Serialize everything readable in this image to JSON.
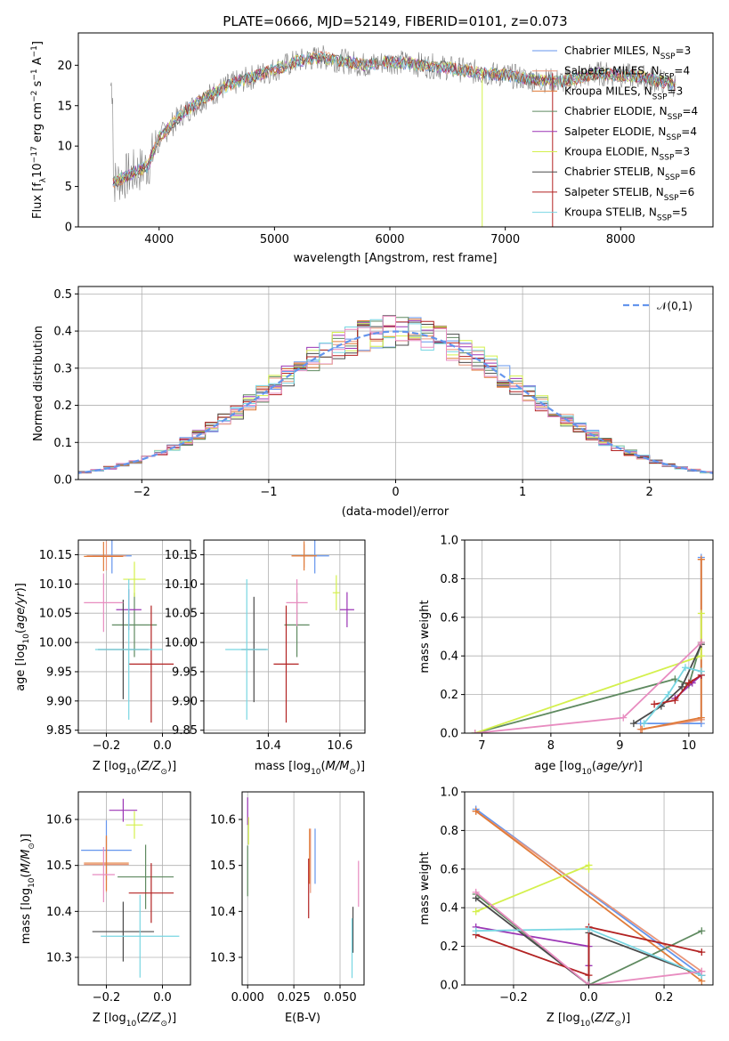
{
  "colors": {
    "series": [
      "#6495ED",
      "#E9967A",
      "#E07B39",
      "#5F8A60",
      "#9B35B5",
      "#D4F04D",
      "#4A4A4A",
      "#B22222",
      "#78D6E2"
    ],
    "series_extra": "#E88CC0",
    "noise": "#808080",
    "normal": "#6495ED",
    "grid": "#b0b0b0"
  },
  "chart_data": [
    {
      "id": "spectrum",
      "type": "line",
      "title": "PLATE=0666, MJD=52149, FIBERID=0101, z=0.073",
      "xlabel": "wavelength [Angstrom, rest frame]",
      "ylabel": "Flux [f",
      "xlim": [
        3300,
        8800
      ],
      "ylim": [
        0,
        24
      ],
      "xticks": [
        4000,
        5000,
        6000,
        7000,
        8000
      ],
      "yticks": [
        0,
        5,
        10,
        15,
        20
      ],
      "legend_position": "top-right",
      "continuum": [
        [
          3600,
          5.5
        ],
        [
          3900,
          7.5
        ],
        [
          4000,
          11
        ],
        [
          4200,
          14
        ],
        [
          4400,
          16
        ],
        [
          4600,
          17.5
        ],
        [
          4800,
          18.5
        ],
        [
          5000,
          19.5
        ],
        [
          5200,
          20.5
        ],
        [
          5400,
          21
        ],
        [
          5600,
          20.5
        ],
        [
          5800,
          20
        ],
        [
          6000,
          20.5
        ],
        [
          6300,
          20
        ],
        [
          6600,
          19.5
        ],
        [
          6800,
          19
        ],
        [
          7000,
          18.8
        ],
        [
          7200,
          18.3
        ],
        [
          7500,
          18
        ],
        [
          7800,
          19
        ],
        [
          8200,
          18.5
        ],
        [
          8500,
          17.5
        ]
      ],
      "series": [
        {
          "name": "Chabrier MILES, N",
          "ssp": "=3"
        },
        {
          "name": "Salpeter MILES, N",
          "ssp": "=4"
        },
        {
          "name": "Kroupa MILES, N",
          "ssp": "=3"
        },
        {
          "name": "Chabrier ELODIE, N",
          "ssp": "=4"
        },
        {
          "name": "Salpeter ELODIE, N",
          "ssp": "=4"
        },
        {
          "name": "Kroupa ELODIE, N",
          "ssp": "=3"
        },
        {
          "name": "Chabrier STELIB, N",
          "ssp": "=6"
        },
        {
          "name": "Salpeter STELIB, N",
          "ssp": "=6"
        },
        {
          "name": "Kroupa STELIB, N",
          "ssp": "=5"
        }
      ]
    },
    {
      "id": "residuals",
      "type": "histogram",
      "xlabel": "(data-model)/error",
      "ylabel": "Normed distribution",
      "xlim": [
        -2.5,
        2.5
      ],
      "ylim": [
        0,
        0.52
      ],
      "xticks": [
        -2,
        -1,
        0,
        1,
        2
      ],
      "yticks": [
        0.0,
        0.1,
        0.2,
        0.3,
        0.4,
        0.5
      ],
      "bin_width": 0.1,
      "reference_label": "𝒩(0,1)",
      "legend_position": "top-right"
    },
    {
      "id": "age_vs_Z",
      "type": "scatter",
      "xlabel": "Z [log",
      "ylabel": "age  [log",
      "xlim": [
        -0.3,
        0.1
      ],
      "ylim": [
        9.845,
        10.175
      ],
      "xticks": [
        -0.2,
        0.0
      ],
      "yticks": [
        9.85,
        9.9,
        9.95,
        10.0,
        10.05,
        10.1,
        10.15
      ],
      "points": [
        {
          "x": -0.18,
          "y": 10.148,
          "xerr": 0.07,
          "yerr": 0.03
        },
        {
          "x": -0.2,
          "y": 10.148,
          "xerr": 0.07,
          "yerr": 0.025
        },
        {
          "x": -0.21,
          "y": 10.147,
          "xerr": 0.07,
          "yerr": 0.025
        },
        {
          "x": -0.1,
          "y": 10.03,
          "xerr": 0.08,
          "yerr": 0.055
        },
        {
          "x": -0.12,
          "y": 10.056,
          "xerr": 0.045,
          "yerr": 0.035
        },
        {
          "x": -0.1,
          "y": 10.108,
          "xerr": 0.04,
          "yerr": 0.03
        },
        {
          "x": -0.14,
          "y": 9.988,
          "xerr": 0.09,
          "yerr": 0.085
        },
        {
          "x": -0.04,
          "y": 9.963,
          "xerr": 0.08,
          "yerr": 0.1
        },
        {
          "x": -0.12,
          "y": 9.988,
          "xerr": 0.12,
          "yerr": 0.12
        },
        {
          "x": -0.21,
          "y": 10.068,
          "xerr": 0.07,
          "yerr": 0.05
        }
      ]
    },
    {
      "id": "age_vs_mass",
      "type": "scatter",
      "xlabel": "mass [log",
      "ylabel": "",
      "xlim": [
        10.22,
        10.67
      ],
      "ylim": [
        9.845,
        10.175
      ],
      "xticks": [
        10.4,
        10.6
      ],
      "yticks": [
        9.85,
        9.9,
        9.95,
        10.0,
        10.05,
        10.1,
        10.15
      ],
      "points": [
        {
          "x": 10.53,
          "y": 10.148,
          "xerr": 0.04,
          "yerr": 0.03
        },
        {
          "x": 10.5,
          "y": 10.148,
          "xerr": 0.035,
          "yerr": 0.02
        },
        {
          "x": 10.5,
          "y": 10.148,
          "xerr": 0.035,
          "yerr": 0.025
        },
        {
          "x": 10.48,
          "y": 10.03,
          "xerr": 0.035,
          "yerr": 0.055
        },
        {
          "x": 10.62,
          "y": 10.056,
          "xerr": 0.02,
          "yerr": 0.03
        },
        {
          "x": 10.59,
          "y": 10.085,
          "xerr": 0.01,
          "yerr": 0.03
        },
        {
          "x": 10.36,
          "y": 9.988,
          "xerr": 0.035,
          "yerr": 0.09
        },
        {
          "x": 10.45,
          "y": 9.963,
          "xerr": 0.035,
          "yerr": 0.1
        },
        {
          "x": 10.34,
          "y": 9.988,
          "xerr": 0.06,
          "yerr": 0.12
        },
        {
          "x": 10.48,
          "y": 10.068,
          "xerr": 0.03,
          "yerr": 0.04
        }
      ]
    },
    {
      "id": "weight_vs_age",
      "type": "line",
      "xlabel": "age  [log",
      "ylabel": "mass weight",
      "xlim": [
        6.75,
        10.35
      ],
      "ylim": [
        0,
        1
      ],
      "xticks": [
        7,
        8,
        9,
        10
      ],
      "yticks": [
        0.0,
        0.2,
        0.4,
        0.6,
        0.8,
        1.0
      ],
      "series": [
        {
          "points": [
            [
              9.3,
              0.05
            ],
            [
              10.18,
              0.05
            ],
            [
              10.18,
              0.91
            ]
          ]
        },
        {
          "points": [
            [
              9.3,
              0.02
            ],
            [
              10.18,
              0.07
            ],
            [
              10.18,
              0.9
            ]
          ]
        },
        {
          "points": [
            [
              9.32,
              0.02
            ],
            [
              10.18,
              0.08
            ],
            [
              10.18,
              0.9
            ]
          ]
        },
        {
          "points": [
            [
              6.9,
              0.0
            ],
            [
              9.8,
              0.28
            ],
            [
              10.0,
              0.25
            ],
            [
              10.18,
              0.47
            ]
          ]
        },
        {
          "points": [
            [
              9.8,
              0.18
            ],
            [
              10.05,
              0.26
            ],
            [
              10.18,
              0.3
            ]
          ]
        },
        {
          "points": [
            [
              6.9,
              0.0
            ],
            [
              10.18,
              0.4
            ],
            [
              10.18,
              0.62
            ]
          ]
        },
        {
          "points": [
            [
              9.2,
              0.05
            ],
            [
              9.6,
              0.14
            ],
            [
              9.9,
              0.24
            ],
            [
              10.18,
              0.46
            ]
          ]
        },
        {
          "points": [
            [
              9.5,
              0.15
            ],
            [
              9.8,
              0.17
            ],
            [
              10.0,
              0.26
            ],
            [
              10.18,
              0.3
            ]
          ]
        },
        {
          "points": [
            [
              9.35,
              0.05
            ],
            [
              9.7,
              0.2
            ],
            [
              9.95,
              0.34
            ],
            [
              10.18,
              0.32
            ]
          ]
        },
        {
          "points": [
            [
              6.9,
              0.0
            ],
            [
              9.05,
              0.08
            ],
            [
              10.18,
              0.47
            ]
          ]
        }
      ]
    },
    {
      "id": "mass_vs_Z",
      "type": "scatter",
      "xlabel": "Z [log",
      "ylabel": "mass [log",
      "xlim": [
        -0.3,
        0.1
      ],
      "ylim": [
        10.24,
        10.66
      ],
      "xticks": [
        -0.2,
        0.0
      ],
      "yticks": [
        10.3,
        10.4,
        10.5,
        10.6
      ],
      "points": [
        {
          "x": -0.2,
          "y": 10.533,
          "xerr": 0.09,
          "yerr": 0.065
        },
        {
          "x": -0.2,
          "y": 10.502,
          "xerr": 0.08,
          "yerr": 0.06
        },
        {
          "x": -0.2,
          "y": 10.505,
          "xerr": 0.08,
          "yerr": 0.06
        },
        {
          "x": -0.06,
          "y": 10.475,
          "xerr": 0.1,
          "yerr": 0.07
        },
        {
          "x": -0.14,
          "y": 10.62,
          "xerr": 0.05,
          "yerr": 0.025
        },
        {
          "x": -0.1,
          "y": 10.588,
          "xerr": 0.03,
          "yerr": 0.03
        },
        {
          "x": -0.14,
          "y": 10.356,
          "xerr": 0.11,
          "yerr": 0.065
        },
        {
          "x": -0.04,
          "y": 10.44,
          "xerr": 0.08,
          "yerr": 0.065
        },
        {
          "x": -0.08,
          "y": 10.346,
          "xerr": 0.14,
          "yerr": 0.09
        },
        {
          "x": -0.21,
          "y": 10.48,
          "xerr": 0.04,
          "yerr": 0.06
        }
      ]
    },
    {
      "id": "mass_vs_ebv",
      "type": "scatter",
      "xlabel": "E(B-V)",
      "ylabel": "",
      "xlim": [
        -0.003,
        0.063
      ],
      "ylim": [
        10.24,
        10.66
      ],
      "xticks": [
        0.0,
        0.025,
        0.05
      ],
      "tick_labels": [
        "0.000",
        "0.025",
        "0.050"
      ],
      "points": [
        {
          "x": 0.0365,
          "y": 10.52,
          "xerr": 0.0,
          "yerr": 0.06
        },
        {
          "x": 0.034,
          "y": 10.51,
          "xerr": 0.0,
          "yerr": 0.07
        },
        {
          "x": 0.0335,
          "y": 10.52,
          "xerr": 0.0,
          "yerr": 0.06
        },
        {
          "x": 0.0,
          "y": 10.488,
          "xerr": 0.0,
          "yerr": 0.055
        },
        {
          "x": 0.0,
          "y": 10.618,
          "xerr": 0.0,
          "yerr": 0.03
        },
        {
          "x": 0.0005,
          "y": 10.575,
          "xerr": 0.0,
          "yerr": 0.03
        },
        {
          "x": 0.057,
          "y": 10.36,
          "xerr": 0.0,
          "yerr": 0.05
        },
        {
          "x": 0.033,
          "y": 10.45,
          "xerr": 0.0,
          "yerr": 0.065
        },
        {
          "x": 0.0565,
          "y": 10.32,
          "xerr": 0.0,
          "yerr": 0.065
        },
        {
          "x": 0.06,
          "y": 10.46,
          "xerr": 0.0,
          "yerr": 0.05
        }
      ]
    },
    {
      "id": "weight_vs_Z",
      "type": "line",
      "xlabel": "Z [log",
      "ylabel": "mass weight",
      "xlim": [
        -0.33,
        0.33
      ],
      "ylim": [
        0,
        1
      ],
      "xticks": [
        -0.2,
        0.0,
        0.2
      ],
      "yticks": [
        0.0,
        0.2,
        0.4,
        0.6,
        0.8,
        1.0
      ],
      "series": [
        {
          "points": [
            [
              -0.3,
              0.91
            ],
            [
              0.3,
              0.05
            ]
          ]
        },
        {
          "points": [
            [
              -0.3,
              0.9
            ],
            [
              0.3,
              0.07
            ]
          ]
        },
        {
          "points": [
            [
              -0.3,
              0.9
            ],
            [
              0.3,
              0.02
            ]
          ]
        },
        {
          "points": [
            [
              -0.3,
              0.47
            ],
            [
              0.0,
              0.0
            ],
            [
              0.3,
              0.28
            ]
          ]
        },
        {
          "points": [
            [
              -0.3,
              0.3
            ],
            [
              0.0,
              0.2
            ],
            [
              0.0,
              0.1
            ]
          ]
        },
        {
          "points": [
            [
              -0.3,
              0.38
            ],
            [
              0.0,
              0.62
            ],
            [
              0.0,
              0.6
            ]
          ]
        },
        {
          "points": [
            [
              -0.3,
              0.45
            ],
            [
              0.0,
              0.0
            ],
            [
              0.0,
              0.27
            ],
            [
              0.3,
              0.05
            ]
          ]
        },
        {
          "points": [
            [
              -0.3,
              0.26
            ],
            [
              0.0,
              0.05
            ],
            [
              0.0,
              0.3
            ],
            [
              0.3,
              0.17
            ]
          ]
        },
        {
          "points": [
            [
              -0.3,
              0.28
            ],
            [
              0.0,
              0.29
            ],
            [
              0.3,
              0.05
            ]
          ]
        },
        {
          "points": [
            [
              -0.3,
              0.48
            ],
            [
              0.0,
              0.0
            ],
            [
              0.3,
              0.07
            ]
          ]
        }
      ]
    }
  ]
}
